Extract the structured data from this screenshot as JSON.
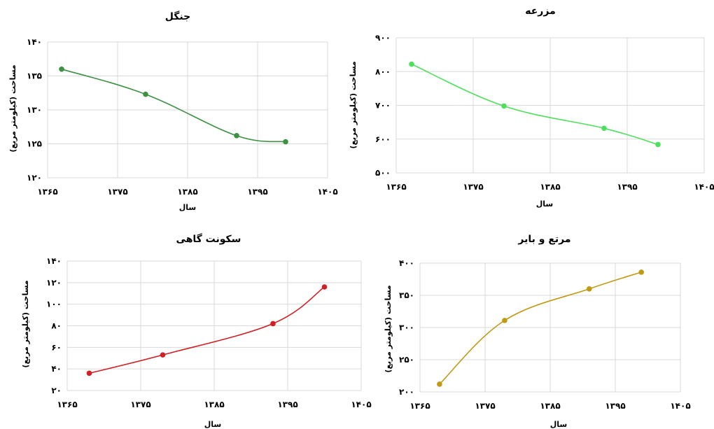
{
  "chart_data": [
    {
      "type": "line",
      "title": "جنگل",
      "xlabel": "سال",
      "ylabel": "مساحت (کیلومتر مربع)",
      "xlim": [
        1365,
        1405
      ],
      "ylim": [
        120,
        140
      ],
      "x_ticks": [
        "۱۳۶۵",
        "۱۳۷۵",
        "۱۳۸۵",
        "۱۳۹۵",
        "۱۴۰۵"
      ],
      "y_ticks": [
        "۱۲۰",
        "۱۲۵",
        "۱۳۰",
        "۱۳۵",
        "۱۴۰"
      ],
      "y_tick_values": [
        120,
        125,
        130,
        135,
        140
      ],
      "color": "#3d9142",
      "grid": true,
      "series": [
        {
          "x": [
            1367,
            1379,
            1392,
            1399
          ],
          "y": [
            136.0,
            132.3,
            126.2,
            125.3
          ]
        }
      ]
    },
    {
      "type": "line",
      "title": "مزرعه",
      "xlabel": "سال",
      "ylabel": "مساحت (کیلومتر مربع)",
      "xlim": [
        1365,
        1405
      ],
      "ylim": [
        500,
        900
      ],
      "x_ticks": [
        "۱۳۶۵",
        "۱۳۷۵",
        "۱۳۸۵",
        "۱۳۹۵",
        "۱۴۰۵"
      ],
      "y_ticks": [
        "۵۰۰",
        "۶۰۰",
        "۷۰۰",
        "۸۰۰",
        "۹۰۰"
      ],
      "y_tick_values": [
        500,
        600,
        700,
        800,
        900
      ],
      "color": "#4ee05c",
      "grid": true,
      "series": [
        {
          "x": [
            1367,
            1379,
            1392,
            1399
          ],
          "y": [
            822,
            698,
            632,
            584
          ]
        }
      ]
    },
    {
      "type": "line",
      "title": "سکونت گاهی",
      "xlabel": "سال",
      "ylabel": "مساحت (کیلومتر مربع)",
      "xlim": [
        1365,
        1405
      ],
      "ylim": [
        20,
        140
      ],
      "x_ticks": [
        "۱۳۶۵",
        "۱۳۷۵",
        "۱۳۸۵",
        "۱۳۹۵",
        "۱۴۰۵"
      ],
      "y_ticks": [
        "۲۰",
        "۴۰",
        "۶۰",
        "۸۰",
        "۱۰۰",
        "۱۲۰",
        "۱۴۰"
      ],
      "y_tick_values": [
        20,
        40,
        60,
        80,
        100,
        120,
        140
      ],
      "color": "#d11f24",
      "grid": true,
      "series": [
        {
          "x": [
            1368,
            1378,
            1393,
            1400
          ],
          "y": [
            36,
            53,
            82,
            116
          ]
        }
      ]
    },
    {
      "type": "line",
      "title": "مرتع و بایر",
      "xlabel": "سال",
      "ylabel": "مساحت (کیلومتر مربع)",
      "xlim": [
        1365,
        1405
      ],
      "ylim": [
        200,
        400
      ],
      "x_ticks": [
        "۱۳۶۵",
        "۱۳۷۵",
        "۱۳۸۵",
        "۱۳۹۵",
        "۱۴۰۵"
      ],
      "y_ticks": [
        "۲۰۰",
        "۲۵۰",
        "۳۰۰",
        "۳۵۰",
        "۴۰۰"
      ],
      "y_tick_values": [
        200,
        250,
        300,
        350,
        400
      ],
      "color": "#c09a13",
      "grid": true,
      "series": [
        {
          "x": [
            1368,
            1378,
            1391,
            1399
          ],
          "y": [
            212,
            311,
            360,
            386
          ]
        }
      ]
    }
  ]
}
